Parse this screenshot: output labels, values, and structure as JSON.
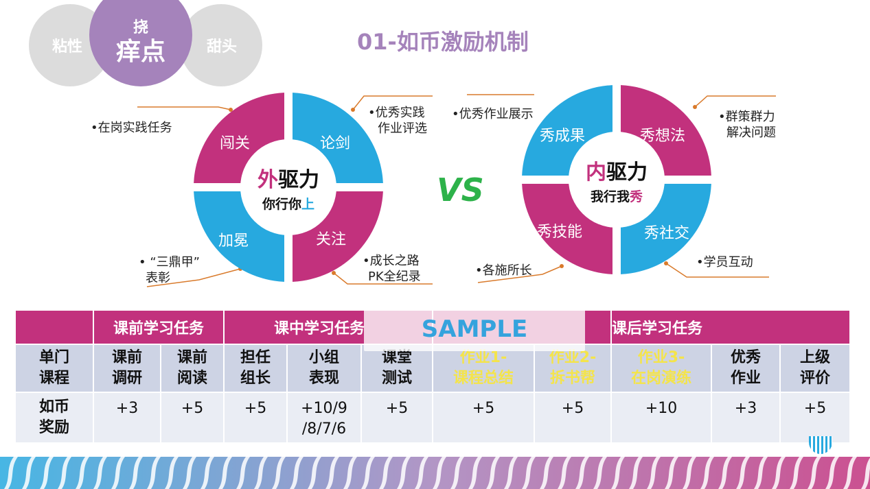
{
  "header": {
    "tabs": [
      {
        "label": "粘性"
      },
      {
        "label_small": "挠",
        "label_big": "痒点"
      },
      {
        "label": "甜头"
      }
    ],
    "title": "01-如币激励机制"
  },
  "left_wheel": {
    "segments": [
      "闯关",
      "论剑",
      "加冕",
      "关注"
    ],
    "hub_line1_a": "外",
    "hub_line1_b": "驱力",
    "hub_line2_a": "你行你",
    "hub_line2_b": "上",
    "annotations": [
      "•在岗实践任务",
      "•优秀实践",
      "作业评选",
      "• “三鼎甲”",
      "表彰",
      "•成长之路",
      "PK全纪录"
    ]
  },
  "vs": "VS",
  "right_wheel": {
    "segments": [
      "秀成果",
      "秀想法",
      "秀技能",
      "秀社交"
    ],
    "hub_line1_a": "内",
    "hub_line1_b": "驱力",
    "hub_line2_a": "我行我",
    "hub_line2_b": "秀",
    "annotations": [
      "•优秀作业展示",
      "•群策群力",
      "解决问题",
      "•各施所长",
      "•学员互动"
    ]
  },
  "table": {
    "groups": [
      "课前学习任务",
      "课中学习任务",
      "课后学习任务"
    ],
    "row_header_label": "单门\n课程",
    "columns": [
      {
        "label": "课前\n调研",
        "value": "+3"
      },
      {
        "label": "课前\n阅读",
        "value": "+5"
      },
      {
        "label": "担任\n组长",
        "value": "+5"
      },
      {
        "label": "小组\n表现",
        "value": "+10/9\n/8/7/6"
      },
      {
        "label": "课堂\n测试",
        "value": "+5"
      },
      {
        "label": "作业1-\n课程总结",
        "value": "+5",
        "highlight": true
      },
      {
        "label": "作业2-\n拆书帮",
        "value": "+5",
        "highlight": true
      },
      {
        "label": "作业3-\n在岗演练",
        "value": "+10",
        "highlight": true
      },
      {
        "label": "优秀\n作业",
        "value": "+3"
      },
      {
        "label": "上级\n评价",
        "value": "+5"
      }
    ],
    "reward_label": "如币\n奖励"
  },
  "watermark": "SAMPLE",
  "colors": {
    "magenta": "#c2317d",
    "cyan": "#27a9df",
    "purple": "#a583bb",
    "green": "#2db24a",
    "yellow": "#f4e44a",
    "leader": "#d97a2b"
  }
}
